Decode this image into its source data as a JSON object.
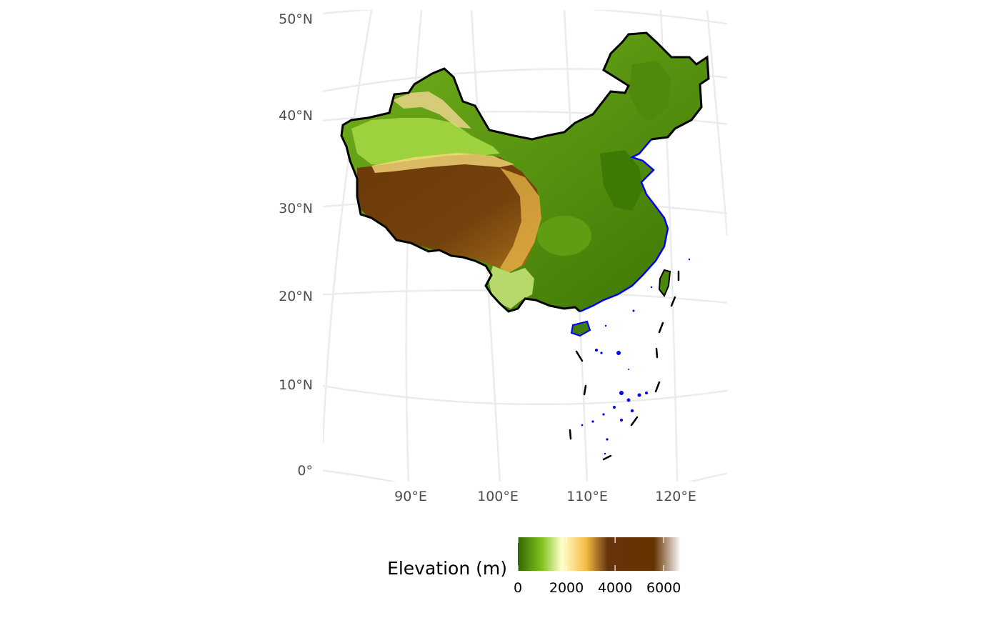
{
  "map": {
    "latitude_labels": [
      "50°N",
      "40°N",
      "30°N",
      "20°N",
      "10°N",
      "0°"
    ],
    "longitude_labels": [
      "90°E",
      "100°E",
      "110°E",
      "120°E"
    ],
    "land_border_color": "#000000",
    "coastline_color": "#0000ff",
    "graticule_color": "#ebebeb",
    "features": [
      "china-outline",
      "nine-dash-line",
      "south-china-sea-islands",
      "taiwan",
      "hainan"
    ]
  },
  "legend": {
    "title": "Elevation (m)",
    "ticks": [
      "0",
      "2000",
      "4000",
      "6000"
    ],
    "tick_values": [
      0,
      2000,
      4000,
      6000
    ],
    "min": 0,
    "max": 6700,
    "color_stops": [
      {
        "value": 0,
        "color": "#336600"
      },
      {
        "value": 1000,
        "color": "#81c31f"
      },
      {
        "value": 1800,
        "color": "#ffffcc"
      },
      {
        "value": 2800,
        "color": "#f4bd45"
      },
      {
        "value": 3700,
        "color": "#66330c"
      },
      {
        "value": 5600,
        "color": "#663300"
      },
      {
        "value": 6700,
        "color": "#ffffff"
      }
    ]
  }
}
